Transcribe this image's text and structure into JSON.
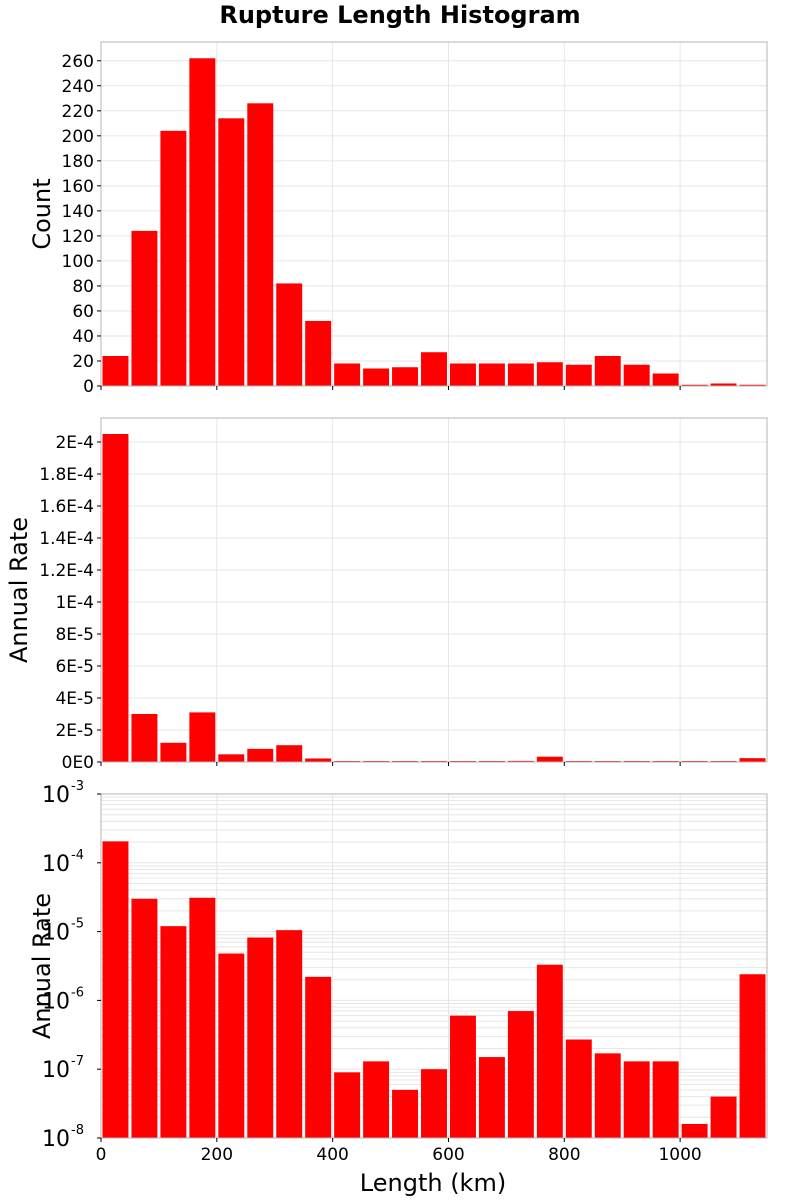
{
  "colors": {
    "bar": "#ff0000",
    "grid": "#e6e6e6",
    "frame": "#b4b4b4"
  },
  "chart_data": {
    "type": "bar",
    "title": "Rupture Length Histogram",
    "xlabel": "Length (km)",
    "x_ticks": [
      "0",
      "200",
      "400",
      "600",
      "800",
      "1000"
    ],
    "xlim": [
      0,
      1150
    ],
    "bin_width": 50,
    "bin_centers": [
      25,
      75,
      125,
      175,
      225,
      275,
      325,
      375,
      425,
      475,
      525,
      575,
      625,
      675,
      725,
      775,
      825,
      875,
      925,
      975,
      1025,
      1075,
      1125
    ],
    "panels": [
      {
        "ylabel": "Count",
        "scale": "linear",
        "ylim": [
          0,
          275
        ],
        "y_tick_values": [
          0,
          20,
          40,
          60,
          80,
          100,
          120,
          140,
          160,
          180,
          200,
          220,
          240,
          260
        ],
        "y_tick_labels": [
          "0",
          "20",
          "40",
          "60",
          "80",
          "100",
          "120",
          "140",
          "160",
          "180",
          "200",
          "220",
          "240",
          "260"
        ],
        "values": [
          24,
          124,
          204,
          262,
          214,
          226,
          82,
          52,
          18,
          14,
          15,
          27,
          18,
          18,
          18,
          19,
          17,
          24,
          17,
          10,
          1,
          2,
          1
        ]
      },
      {
        "ylabel": "Annual Rate",
        "scale": "linear",
        "ylim": [
          0,
          0.000215
        ],
        "y_tick_values": [
          0,
          2e-05,
          4e-05,
          6e-05,
          8e-05,
          0.0001,
          0.00012,
          0.00014,
          0.00016,
          0.00018,
          0.0002
        ],
        "y_tick_labels": [
          "0E0",
          "2E-5",
          "4E-5",
          "6E-5",
          "8E-5",
          "1E-4",
          "1.2E-4",
          "1.4E-4",
          "1.6E-4",
          "1.8E-4",
          "2E-4"
        ],
        "values": [
          0.000205,
          3e-05,
          1.2e-05,
          3.1e-05,
          4.8e-06,
          8.2e-06,
          1.05e-05,
          2.2e-06,
          9e-08,
          1.3e-07,
          5e-08,
          1e-07,
          6e-07,
          1.5e-07,
          7e-07,
          3.3e-06,
          2.7e-07,
          1.7e-07,
          1.3e-07,
          1.3e-07,
          1.6e-08,
          4e-08,
          2.4e-06
        ]
      },
      {
        "ylabel": "Annual Rate",
        "scale": "log",
        "ylim": [
          1e-08,
          0.001
        ],
        "y_tick_exponents": [
          "-8",
          "-7",
          "-6",
          "-5",
          "-4",
          "-3"
        ],
        "values": [
          0.000205,
          3e-05,
          1.2e-05,
          3.1e-05,
          4.8e-06,
          8.2e-06,
          1.05e-05,
          2.2e-06,
          9e-08,
          1.3e-07,
          5e-08,
          1e-07,
          6e-07,
          1.5e-07,
          7e-07,
          3.3e-06,
          2.7e-07,
          1.7e-07,
          1.3e-07,
          1.3e-07,
          1.6e-08,
          4e-08,
          2.4e-06
        ]
      }
    ]
  }
}
